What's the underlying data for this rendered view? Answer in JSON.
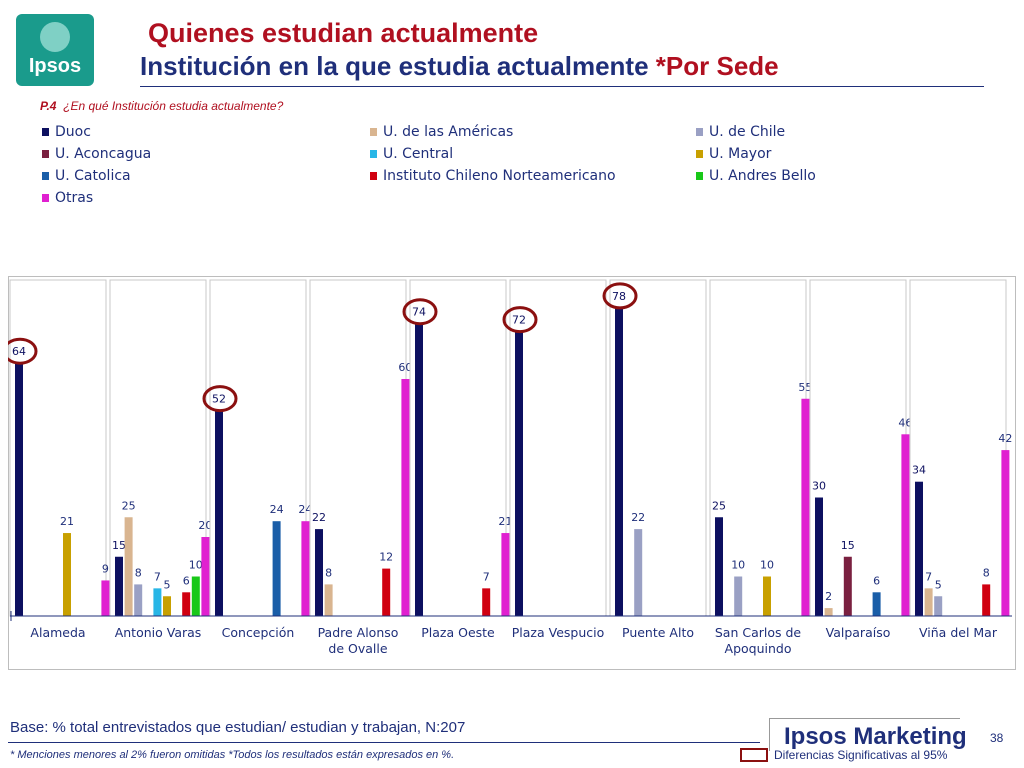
{
  "header": {
    "logo_text": "Ipsos",
    "title_line1": "Quienes estudian actualmente",
    "title_line2": "Institución en la que estudia actualmente",
    "title_line2_accent": "*Por Sede"
  },
  "question": {
    "code": "P.4",
    "text": "¿En qué Institución estudia actualmente?"
  },
  "colors": {
    "Duoc": "#0d1060",
    "U. de las Américas": "#d9b590",
    "U. de Chile": "#9aa0c4",
    "U. Aconcagua": "#7a2040",
    "U. Central": "#28b6e6",
    "U. Mayor": "#c8a000",
    "U. Catolica": "#1a5ea8",
    "Instituto Chileno Norteamericano": "#d00010",
    "U. Andres Bello": "#18c818",
    "Otras": "#e020d0",
    "highlight": "#8b1010"
  },
  "chart_data": {
    "type": "bar",
    "ylim": [
      0,
      80
    ],
    "legend_position": "top",
    "series_names": [
      "Duoc",
      "U. de las Américas",
      "U. de Chile",
      "U. Aconcagua",
      "U. Central",
      "U. Mayor",
      "U. Catolica",
      "Instituto Chileno Norteamericano",
      "U. Andres Bello",
      "Otras"
    ],
    "groups": [
      {
        "label": "Alameda",
        "bars": [
          {
            "series": "Duoc",
            "value": 64,
            "highlight": true
          },
          {
            "series": "U. Mayor",
            "value": 21
          },
          {
            "series": "Otras",
            "value": 9
          }
        ]
      },
      {
        "label": "Antonio Varas",
        "bars": [
          {
            "series": "Duoc",
            "value": 15
          },
          {
            "series": "U. de las Américas",
            "value": 25
          },
          {
            "series": "U. de Chile",
            "value": 8
          },
          {
            "series": "U. Central",
            "value": 7
          },
          {
            "series": "U. Mayor",
            "value": 5
          },
          {
            "series": "Instituto Chileno Norteamericano",
            "value": 6
          },
          {
            "series": "U. Andres Bello",
            "value": 10
          },
          {
            "series": "Otras",
            "value": 20
          }
        ]
      },
      {
        "label": "Concepción",
        "bars": [
          {
            "series": "Duoc",
            "value": 52,
            "highlight": true
          },
          {
            "series": "U. Catolica",
            "value": 24
          },
          {
            "series": "Otras",
            "value": 24
          }
        ]
      },
      {
        "label": "Padre Alonso de Ovalle",
        "bars": [
          {
            "series": "Duoc",
            "value": 22
          },
          {
            "series": "U. de las Américas",
            "value": 8
          },
          {
            "series": "Instituto Chileno Norteamericano",
            "value": 12
          },
          {
            "series": "Otras",
            "value": 60
          }
        ]
      },
      {
        "label": "Plaza Oeste",
        "bars": [
          {
            "series": "Duoc",
            "value": 74,
            "highlight": true
          },
          {
            "series": "Instituto Chileno Norteamericano",
            "value": 7
          },
          {
            "series": "Otras",
            "value": 21
          }
        ]
      },
      {
        "label": "Plaza Vespucio",
        "bars": [
          {
            "series": "Duoc",
            "value": 72,
            "highlight": true
          }
        ]
      },
      {
        "label": "Puente Alto",
        "bars": [
          {
            "series": "Duoc",
            "value": 78,
            "highlight": true
          },
          {
            "series": "U. de Chile",
            "value": 22
          }
        ]
      },
      {
        "label": "San Carlos de Apoquindo",
        "bars": [
          {
            "series": "Duoc",
            "value": 25
          },
          {
            "series": "U. de Chile",
            "value": 10
          },
          {
            "series": "U. Mayor",
            "value": 10
          },
          {
            "series": "Otras",
            "value": 55
          }
        ]
      },
      {
        "label": "Valparaíso",
        "bars": [
          {
            "series": "Duoc",
            "value": 30
          },
          {
            "series": "U. de las Américas",
            "value": 2
          },
          {
            "series": "U. Aconcagua",
            "value": 15
          },
          {
            "series": "U. Catolica",
            "value": 6
          },
          {
            "series": "Otras",
            "value": 46
          }
        ]
      },
      {
        "label": "Viña del Mar",
        "bars": [
          {
            "series": "Duoc",
            "value": 34
          },
          {
            "series": "U. de las Américas",
            "value": 7
          },
          {
            "series": "U. de Chile",
            "value": 5
          },
          {
            "series": "Instituto Chileno Norteamericano",
            "value": 8
          },
          {
            "series": "Otras",
            "value": 42
          }
        ]
      }
    ]
  },
  "footer": {
    "base": "Base: % total entrevistados que estudian/ estudian y trabajan, N:207",
    "footnote_a": "* Menciones menores al 2% fueron omitidas ",
    "footnote_b": "*Todos los resultados están expresados en %.",
    "brand": "Ipsos Marketing",
    "page_number": "38",
    "significance_label": "Diferencias Significativas al 95%"
  }
}
